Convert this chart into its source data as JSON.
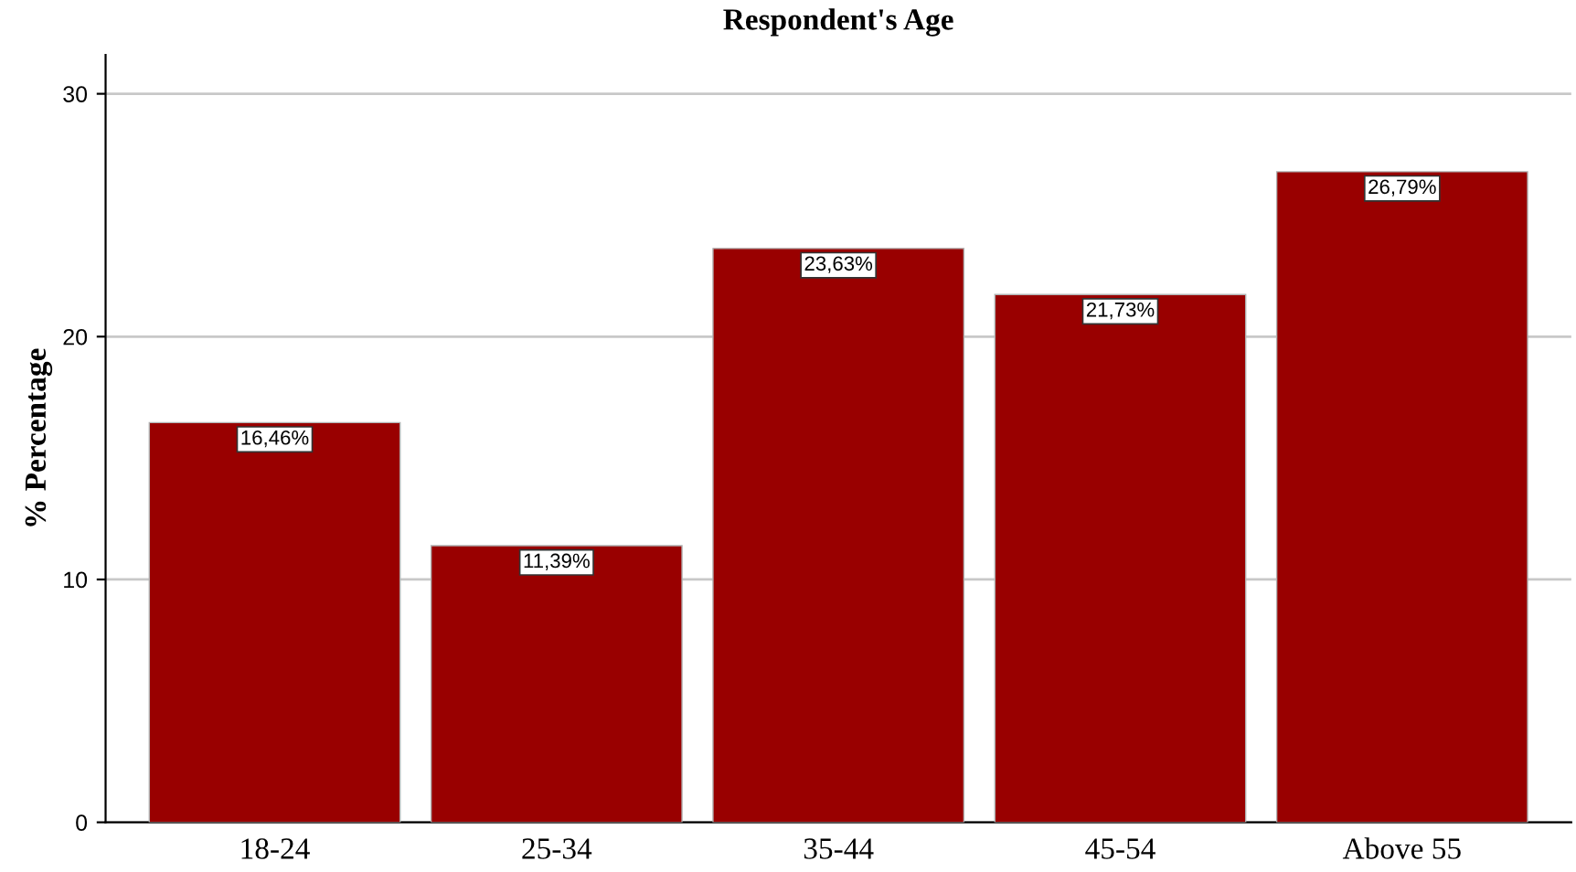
{
  "chart_data": {
    "type": "bar",
    "title": "Respondent's Age",
    "ylabel": "% Percentage",
    "categories": [
      "18-24",
      "25-34",
      "35-44",
      "45-54",
      "Above 55"
    ],
    "values": [
      16.46,
      11.39,
      23.63,
      21.73,
      26.79
    ],
    "value_labels": [
      "16,46%",
      "11,39%",
      "23,63%",
      "21,73%",
      "26,79%"
    ],
    "color": "#990000",
    "ylim": [
      0,
      31.6
    ],
    "yticks": [
      0,
      10,
      20,
      30
    ],
    "grid": "y",
    "legend": false
  }
}
